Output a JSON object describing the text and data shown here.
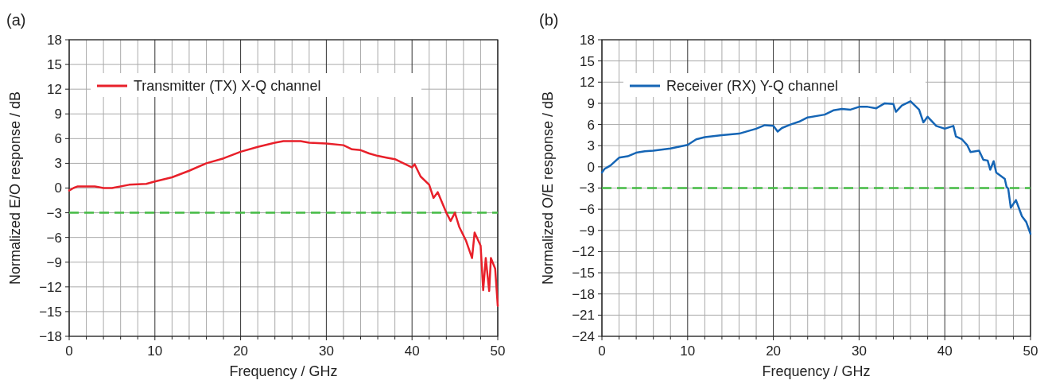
{
  "chart_data": [
    {
      "type": "line",
      "title": "(a)",
      "xlabel": "Frequency / GHz",
      "ylabel": "Normalized E/O response / dB",
      "xlim": [
        0,
        50
      ],
      "xticks": [
        0,
        10,
        20,
        30,
        40,
        50
      ],
      "ylim": [
        -18,
        18
      ],
      "yticks": [
        -18,
        -15,
        -12,
        -9,
        -6,
        -3,
        0,
        3,
        6,
        9,
        12,
        15,
        18
      ],
      "grid": true,
      "legend": "top left",
      "line_style": "solid",
      "ref_lines": [
        {
          "axis": "y",
          "value": -3,
          "color": "#44bb44",
          "line_style": "dashed"
        }
      ],
      "series": [
        {
          "name": "Transmitter (TX) X-Q channel",
          "color": "#e8202a",
          "x": [
            0,
            0.5,
            1,
            3,
            4,
            5,
            7,
            9,
            10,
            12,
            14,
            16,
            18,
            20,
            22,
            24,
            25,
            26,
            27,
            28,
            30,
            32,
            33,
            34,
            35,
            36,
            37,
            38,
            39,
            40,
            40.3,
            41,
            42,
            42.5,
            43,
            44,
            44.5,
            45,
            45.5,
            46.3,
            47,
            47.3,
            48,
            48.3,
            48.6,
            49,
            49.2,
            49.7,
            50
          ],
          "values": [
            -0.3,
            0,
            0.2,
            0.2,
            0,
            0,
            0.4,
            0.5,
            0.8,
            1.3,
            2.1,
            3.0,
            3.6,
            4.4,
            5.0,
            5.5,
            5.7,
            5.7,
            5.7,
            5.5,
            5.4,
            5.2,
            4.7,
            4.6,
            4.2,
            3.9,
            3.7,
            3.5,
            3.0,
            2.5,
            2.9,
            1.4,
            0.4,
            -1.2,
            -0.5,
            -3.0,
            -4.0,
            -3.0,
            -4.7,
            -6.4,
            -8.5,
            -5.4,
            -7.0,
            -12.4,
            -8.5,
            -12.5,
            -8.5,
            -9.8,
            -14.3
          ]
        }
      ]
    },
    {
      "type": "line",
      "title": "(b)",
      "xlabel": "Frequency / GHz",
      "ylabel": "Normalized O/E response / dB",
      "xlim": [
        0,
        50
      ],
      "xticks": [
        0,
        10,
        20,
        30,
        40,
        50
      ],
      "ylim": [
        -24,
        18
      ],
      "yticks": [
        -24,
        -21,
        -18,
        -15,
        -12,
        -9,
        -6,
        -3,
        0,
        3,
        6,
        9,
        12,
        15,
        18
      ],
      "grid": true,
      "legend": "top left",
      "line_style": "solid",
      "ref_lines": [
        {
          "axis": "y",
          "value": -3,
          "color": "#44bb44",
          "line_style": "dashed"
        }
      ],
      "series": [
        {
          "name": "Receiver (RX) Y-Q channel",
          "color": "#1565b5",
          "x": [
            0,
            0.3,
            1,
            2,
            3,
            4,
            5,
            6,
            8,
            10,
            11,
            12,
            14,
            16,
            18,
            19,
            20,
            20.5,
            21,
            22,
            23,
            24,
            26,
            27,
            28,
            29,
            30,
            31,
            32,
            33,
            34,
            34.3,
            35,
            36,
            37,
            37.5,
            38,
            39,
            40,
            41,
            41.3,
            42,
            42.6,
            43,
            44,
            44.5,
            45,
            45.3,
            45.7,
            46,
            47,
            47.2,
            47.4,
            47.7,
            48.3,
            49,
            49.5,
            50
          ],
          "values": [
            -0.8,
            -0.3,
            0.2,
            1.3,
            1.5,
            2.0,
            2.2,
            2.3,
            2.6,
            3.1,
            3.9,
            4.2,
            4.5,
            4.7,
            5.4,
            5.9,
            5.8,
            5.0,
            5.5,
            6.0,
            6.4,
            7.0,
            7.4,
            8.0,
            8.2,
            8.1,
            8.5,
            8.5,
            8.3,
            9.0,
            8.9,
            7.8,
            8.7,
            9.3,
            8.1,
            6.3,
            7.1,
            5.8,
            5.4,
            5.8,
            4.3,
            3.9,
            3.1,
            2.1,
            2.3,
            1.0,
            0.9,
            -0.4,
            0.8,
            -0.8,
            -1.7,
            -2.8,
            -3.1,
            -5.8,
            -4.7,
            -7.0,
            -7.8,
            -9.5
          ]
        }
      ]
    }
  ]
}
